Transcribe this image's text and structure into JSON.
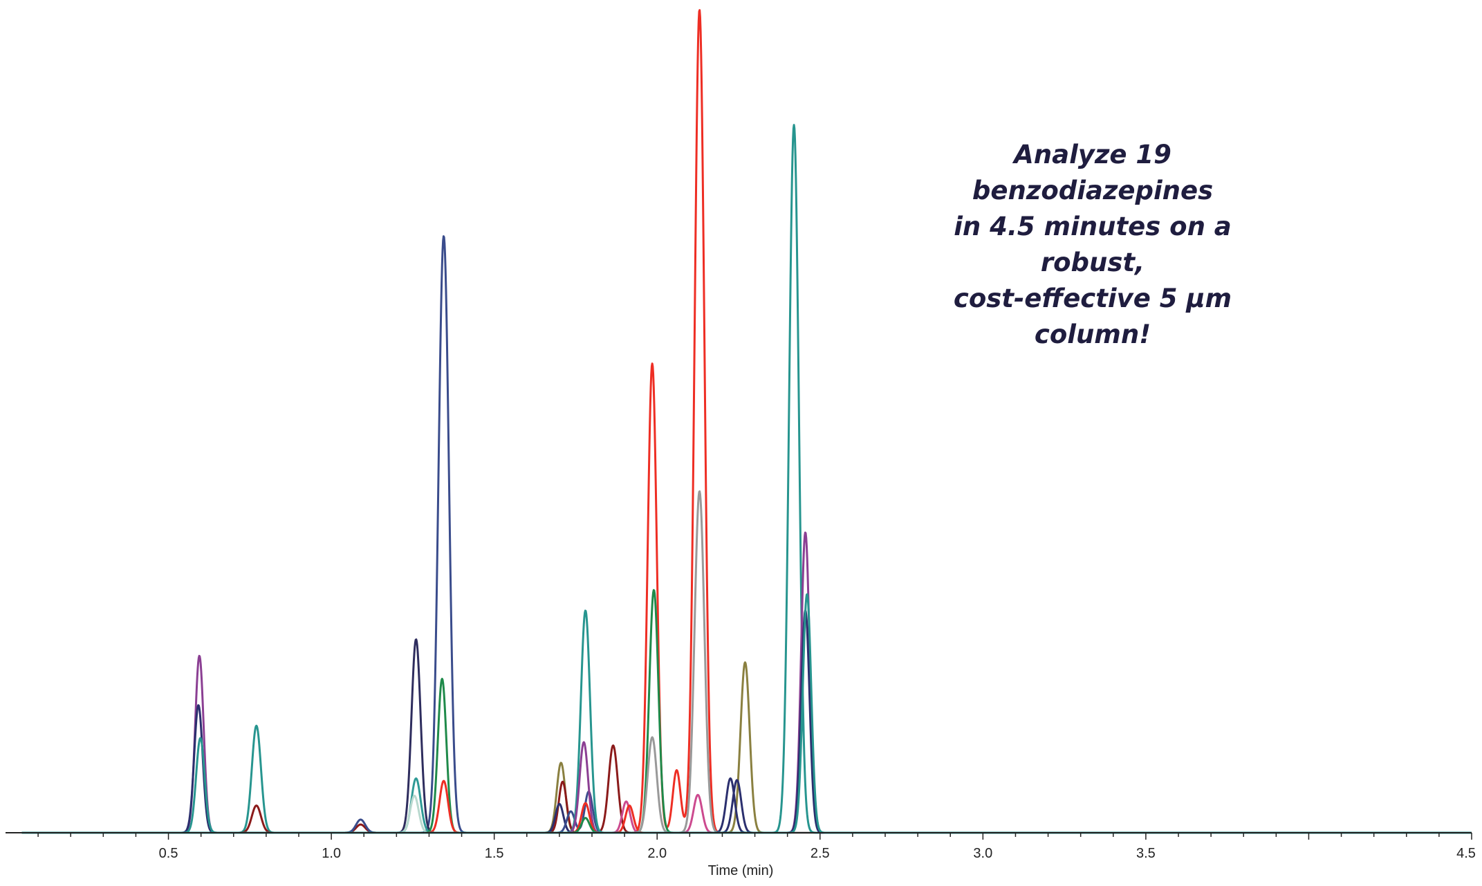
{
  "annotation": {
    "line1": "Analyze 19 benzodiazepines",
    "line2": "in 4.5 minutes on a robust,",
    "line3": "cost-effective 5 µm column!"
  },
  "chart_data": {
    "type": "line",
    "title": "",
    "xlabel": "Time (min)",
    "ylabel": "",
    "xlim": [
      0.0,
      4.5
    ],
    "ylim": [
      0,
      100
    ],
    "grid": false,
    "legend": "none",
    "x_ticks": [
      "0.5",
      "1.0",
      "1.5",
      "2.0",
      "2.5",
      "3.0",
      "3.5",
      "4.5"
    ],
    "x_tick_values": [
      0.5,
      1.0,
      1.5,
      2.0,
      2.5,
      3.0,
      3.5,
      4.5
    ],
    "extra_unlabeled_tick": 4.0,
    "series": [
      {
        "color": "#8b3f93",
        "peaks": [
          {
            "t": 0.595,
            "h": 21.5,
            "w": 0.013
          }
        ]
      },
      {
        "color": "#2b2f6e",
        "peaks": [
          {
            "t": 0.592,
            "h": 15.5,
            "w": 0.013
          }
        ]
      },
      {
        "color": "#27958f",
        "peaks": [
          {
            "t": 0.598,
            "h": 11.5,
            "w": 0.013
          },
          {
            "t": 0.77,
            "h": 13.0,
            "w": 0.014
          }
        ]
      },
      {
        "color": "#8b1a1a",
        "peaks": [
          {
            "t": 0.77,
            "h": 3.3,
            "w": 0.014
          },
          {
            "t": 1.09,
            "h": 1.0,
            "w": 0.014
          }
        ]
      },
      {
        "color": "#3a4c8c",
        "peaks": [
          {
            "t": 1.09,
            "h": 1.6,
            "w": 0.014
          },
          {
            "t": 1.345,
            "h": 72.5,
            "w": 0.016
          }
        ]
      },
      {
        "color": "#2e2d5e",
        "peaks": [
          {
            "t": 1.26,
            "h": 23.5,
            "w": 0.014
          }
        ]
      },
      {
        "color": "#2f9a96",
        "peaks": [
          {
            "t": 1.26,
            "h": 6.6,
            "w": 0.014
          }
        ]
      },
      {
        "color": "#b9d9cf",
        "peaks": [
          {
            "t": 1.255,
            "h": 4.5,
            "w": 0.013
          }
        ]
      },
      {
        "color": "#1f8a4a",
        "peaks": [
          {
            "t": 1.34,
            "h": 18.7,
            "w": 0.013
          }
        ]
      },
      {
        "color": "#ee2e24",
        "peaks": [
          {
            "t": 1.345,
            "h": 6.3,
            "w": 0.013
          }
        ]
      },
      {
        "color": "#8a8040",
        "peaks": [
          {
            "t": 1.705,
            "h": 8.5,
            "w": 0.013
          },
          {
            "t": 2.27,
            "h": 20.7,
            "w": 0.014
          }
        ]
      },
      {
        "color": "#8b1a1a",
        "peaks": [
          {
            "t": 1.71,
            "h": 6.2,
            "w": 0.012
          },
          {
            "t": 1.865,
            "h": 10.6,
            "w": 0.014
          }
        ]
      },
      {
        "color": "#2b2f6e",
        "peaks": [
          {
            "t": 1.7,
            "h": 3.5,
            "w": 0.012
          },
          {
            "t": 2.245,
            "h": 6.4,
            "w": 0.013
          }
        ]
      },
      {
        "color": "#3a4c8c",
        "peaks": [
          {
            "t": 1.735,
            "h": 2.6,
            "w": 0.012
          },
          {
            "t": 1.79,
            "h": 5.0,
            "w": 0.012
          }
        ]
      },
      {
        "color": "#27958f",
        "peaks": [
          {
            "t": 1.78,
            "h": 27.0,
            "w": 0.014
          }
        ]
      },
      {
        "color": "#8b3f93",
        "peaks": [
          {
            "t": 1.775,
            "h": 11.0,
            "w": 0.013
          }
        ]
      },
      {
        "color": "#ee2e24",
        "peaks": [
          {
            "t": 1.78,
            "h": 3.6,
            "w": 0.012
          },
          {
            "t": 1.985,
            "h": 57.0,
            "w": 0.014
          },
          {
            "t": 2.06,
            "h": 7.6,
            "w": 0.012
          },
          {
            "t": 2.13,
            "h": 100.0,
            "w": 0.015
          }
        ]
      },
      {
        "color": "#1f8a4a",
        "peaks": [
          {
            "t": 1.78,
            "h": 1.8,
            "w": 0.012
          },
          {
            "t": 1.99,
            "h": 29.5,
            "w": 0.014
          }
        ]
      },
      {
        "color": "#cc4a8f",
        "peaks": [
          {
            "t": 1.905,
            "h": 3.8,
            "w": 0.012
          },
          {
            "t": 2.125,
            "h": 4.6,
            "w": 0.013
          }
        ]
      },
      {
        "color": "#ee2e24",
        "peaks": [
          {
            "t": 1.915,
            "h": 3.3,
            "w": 0.012
          }
        ]
      },
      {
        "color": "#999999",
        "peaks": [
          {
            "t": 1.985,
            "h": 11.6,
            "w": 0.014
          },
          {
            "t": 2.13,
            "h": 41.5,
            "w": 0.015
          }
        ]
      },
      {
        "color": "#27958f",
        "peaks": [
          {
            "t": 2.42,
            "h": 86.0,
            "w": 0.015
          }
        ]
      },
      {
        "color": "#8b3f93",
        "peaks": [
          {
            "t": 2.455,
            "h": 36.5,
            "w": 0.013
          }
        ]
      },
      {
        "color": "#2b2f6e",
        "peaks": [
          {
            "t": 2.225,
            "h": 6.6,
            "w": 0.013
          },
          {
            "t": 2.455,
            "h": 27.0,
            "w": 0.013
          }
        ]
      },
      {
        "color": "#27958f",
        "peaks": [
          {
            "t": 2.46,
            "h": 29.0,
            "w": 0.013
          }
        ]
      }
    ]
  }
}
